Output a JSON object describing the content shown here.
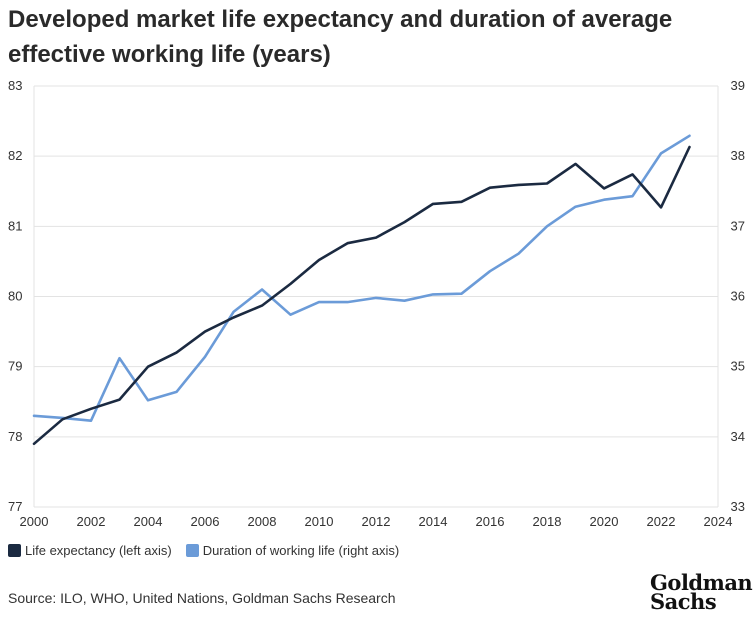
{
  "title": "Developed market life expectancy and duration of average effective working life (years)",
  "source": "Source: ILO, WHO, United Nations, Goldman Sachs Research",
  "logo": {
    "line1": "Goldman",
    "line2": "Sachs"
  },
  "chart_data": {
    "type": "line",
    "xlim": [
      2000,
      2024
    ],
    "x_ticks": [
      2000,
      2002,
      2004,
      2006,
      2008,
      2010,
      2012,
      2014,
      2016,
      2018,
      2020,
      2022,
      2024
    ],
    "y_left_lim": [
      77,
      83
    ],
    "y_left_ticks": [
      77,
      78,
      79,
      80,
      81,
      82,
      83
    ],
    "y_right_lim": [
      33,
      39
    ],
    "y_right_ticks": [
      33,
      34,
      35,
      36,
      37,
      38,
      39
    ],
    "grid": "horizontal",
    "legend_position": "bottom-left",
    "x": [
      2000,
      2001,
      2002,
      2003,
      2004,
      2005,
      2006,
      2007,
      2008,
      2009,
      2010,
      2011,
      2012,
      2013,
      2014,
      2015,
      2016,
      2017,
      2018,
      2019,
      2020,
      2021,
      2022,
      2023
    ],
    "series": [
      {
        "name": "Life expectancy (left axis)",
        "axis": "left",
        "color": "#1b2a41",
        "values": [
          77.9,
          78.25,
          78.4,
          78.53,
          79.0,
          79.2,
          79.5,
          79.7,
          79.87,
          80.18,
          80.52,
          80.76,
          80.84,
          81.06,
          81.32,
          81.35,
          81.55,
          81.59,
          81.61,
          81.89,
          81.54,
          81.74,
          81.27,
          82.13
        ]
      },
      {
        "name": "Duration of working life (right axis)",
        "axis": "right",
        "color": "#6b9bd8",
        "values": [
          34.3,
          34.27,
          34.23,
          35.12,
          34.52,
          34.64,
          35.14,
          35.78,
          36.1,
          35.74,
          35.92,
          35.92,
          35.98,
          35.94,
          36.03,
          36.04,
          36.36,
          36.61,
          37.0,
          37.28,
          37.38,
          37.43,
          38.04,
          38.29
        ]
      }
    ]
  }
}
